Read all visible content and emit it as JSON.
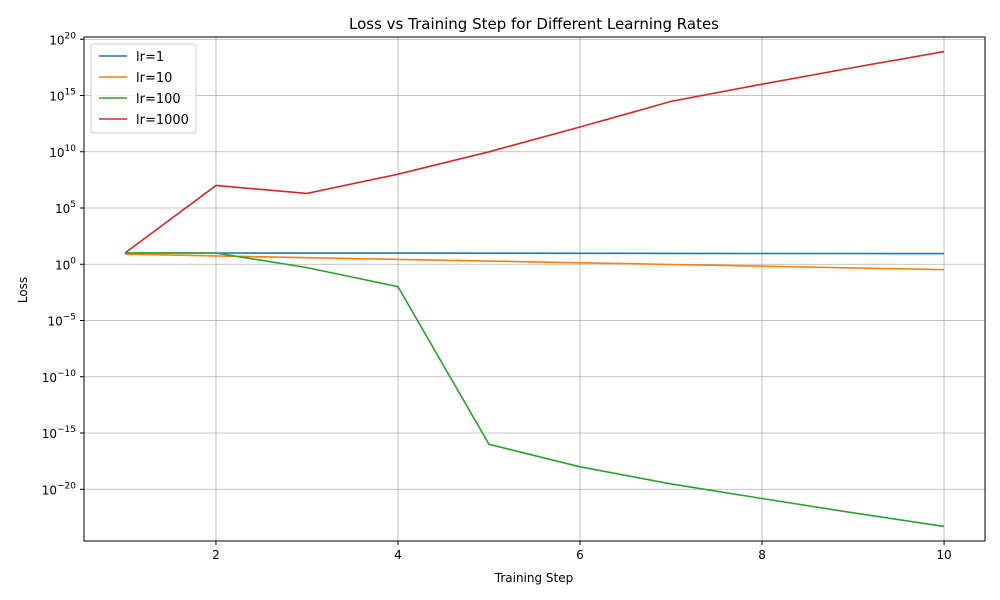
{
  "chart_data": {
    "type": "line",
    "title": "Loss vs Training Step for Different Learning Rates",
    "xlabel": "Training Step",
    "ylabel": "Loss",
    "x": [
      1,
      2,
      3,
      4,
      5,
      6,
      7,
      8,
      9,
      10
    ],
    "xlim": [
      0.55,
      10.45
    ],
    "ylim_exponent": [
      -24.6,
      20.2
    ],
    "yscale": "log",
    "xticks": [
      2,
      4,
      6,
      8,
      10
    ],
    "yticks_exponent": [
      -20,
      -15,
      -10,
      -5,
      0,
      5,
      10,
      15,
      20
    ],
    "ytick_base": "10",
    "grid": true,
    "legend_position": "upper-left",
    "series": [
      {
        "name": "lr=1",
        "color": "#1f77b4",
        "values": [
          10,
          9.9,
          9.8,
          9.7,
          9.6,
          9.4,
          9.3,
          9.1,
          9.0,
          8.8
        ]
      },
      {
        "name": "lr=10",
        "color": "#ff7f0e",
        "values": [
          8,
          5.5,
          3.8,
          2.7,
          1.9,
          1.35,
          0.95,
          0.67,
          0.47,
          0.33
        ]
      },
      {
        "name": "lr=100",
        "color": "#2ca02c",
        "values": [
          10,
          10,
          0.5,
          0.01,
          1e-16,
          1e-18,
          3e-20,
          1.5e-21,
          8e-23,
          5e-24
        ]
      },
      {
        "name": "lr=1000",
        "color": "#d62728",
        "values": [
          10,
          10000000,
          2000000,
          100000000,
          10000000000.0,
          1600000000000.0,
          300000000000000.0,
          1e+16,
          3e+17,
          8e+18
        ]
      }
    ]
  }
}
